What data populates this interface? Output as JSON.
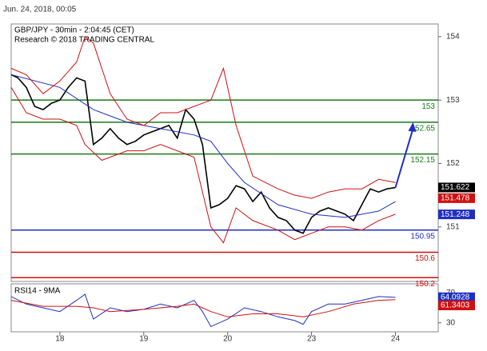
{
  "timestamp": "Jun. 24, 2018, 00:05",
  "chart_data": [
    {
      "type": "line",
      "title": "GBP/JPY - 30min - 2:04:45 (CET)",
      "subtitle": "Research © 2018 TRADING CENTRAL",
      "xlim": [
        0.42,
        5.51
      ],
      "ylim": [
        150.14,
        154.2
      ],
      "yticks": [
        151,
        152,
        153,
        154
      ],
      "series": [
        {
          "color": "#000000",
          "x": [
            0.42,
            0.5,
            0.6,
            0.7,
            0.8,
            0.9,
            1.0,
            1.1,
            1.2,
            1.3,
            1.4,
            1.5,
            1.6,
            1.7,
            1.8,
            1.9,
            2.0,
            2.1,
            2.2,
            2.3,
            2.4,
            2.5,
            2.6,
            2.7,
            2.8,
            2.9,
            3.0,
            3.1,
            3.2,
            3.3,
            3.4,
            3.5,
            3.6,
            3.7,
            3.8,
            3.9,
            4.0,
            4.1,
            4.2,
            4.3,
            4.4,
            4.5,
            4.6,
            4.7,
            4.8,
            4.9,
            5.0
          ],
          "values": [
            153.4,
            153.35,
            153.2,
            152.9,
            152.85,
            152.95,
            153.0,
            153.2,
            153.35,
            153.3,
            152.3,
            152.4,
            152.55,
            152.4,
            152.3,
            152.35,
            152.45,
            152.5,
            152.55,
            152.6,
            152.4,
            152.85,
            152.7,
            152.3,
            151.3,
            151.35,
            151.45,
            151.65,
            151.6,
            151.4,
            151.55,
            151.3,
            151.15,
            151.1,
            150.95,
            150.9,
            151.15,
            151.25,
            151.3,
            151.25,
            151.2,
            151.1,
            151.35,
            151.6,
            151.55,
            151.6,
            151.62
          ]
        },
        {
          "color": "#1f2fbf",
          "x": [
            0.42,
            1.0,
            1.4,
            1.8,
            2.2,
            2.6,
            2.8,
            3.0,
            3.2,
            3.6,
            4.0,
            4.4,
            4.8,
            5.0
          ],
          "values": [
            153.4,
            153.2,
            152.85,
            152.65,
            152.55,
            152.45,
            152.35,
            152.0,
            151.7,
            151.35,
            151.2,
            151.15,
            151.25,
            151.4
          ]
        },
        {
          "color": "#d01010",
          "x": [
            0.42,
            0.6,
            0.8,
            1.0,
            1.2,
            1.3,
            1.4,
            1.6,
            1.8,
            2.0,
            2.2,
            2.4,
            2.6,
            2.8,
            2.95,
            3.1,
            3.3,
            3.6,
            3.8,
            4.0,
            4.2,
            4.4,
            4.6,
            4.8,
            5.0
          ],
          "values": [
            153.5,
            153.4,
            153.1,
            153.3,
            153.6,
            154.0,
            153.9,
            153.1,
            152.7,
            152.6,
            152.8,
            152.8,
            152.9,
            153.0,
            153.5,
            152.6,
            151.8,
            151.6,
            151.5,
            151.45,
            151.55,
            151.6,
            151.6,
            151.75,
            151.7
          ]
        },
        {
          "color": "#d01010",
          "x": [
            0.42,
            0.6,
            0.8,
            1.0,
            1.2,
            1.3,
            1.5,
            1.8,
            2.0,
            2.2,
            2.4,
            2.6,
            2.8,
            2.95,
            3.1,
            3.3,
            3.6,
            3.8,
            4.0,
            4.2,
            4.4,
            4.6,
            4.8,
            5.0
          ],
          "values": [
            153.2,
            152.8,
            152.7,
            152.7,
            152.6,
            152.3,
            152.05,
            152.2,
            152.2,
            152.3,
            152.2,
            152.1,
            151.0,
            150.75,
            151.3,
            151.1,
            150.95,
            150.8,
            150.9,
            151.0,
            151.0,
            150.95,
            151.1,
            151.2
          ]
        }
      ],
      "levels": [
        {
          "value": 153,
          "color": "#1a7a1a"
        },
        {
          "value": 152.65,
          "color": "#1a7a1a"
        },
        {
          "value": 152.15,
          "color": "#1a7a1a"
        },
        {
          "value": 150.95,
          "color": "#1f2fbf"
        },
        {
          "value": 150.6,
          "color": "#d01010"
        },
        {
          "value": 150.2,
          "color": "#d01010"
        }
      ],
      "price_labels": [
        {
          "value": 151.622,
          "color": "#000000"
        },
        {
          "value": 151.478,
          "color": "#d01010"
        },
        {
          "value": 151.248,
          "color": "#1f2fbf"
        }
      ]
    },
    {
      "type": "line",
      "title": "RSI14 - 9MA",
      "xlim": [
        0.42,
        5.51
      ],
      "ylim": [
        18,
        82
      ],
      "yticks": [
        30,
        70
      ],
      "xticks": [
        {
          "value": 1,
          "label": "18"
        },
        {
          "value": 2,
          "label": "19"
        },
        {
          "value": 3,
          "label": "20"
        },
        {
          "value": 4,
          "label": "23"
        },
        {
          "value": 5,
          "label": "24"
        }
      ],
      "series": [
        {
          "color": "#1f2fbf",
          "x": [
            0.42,
            0.6,
            0.8,
            1.0,
            1.2,
            1.3,
            1.4,
            1.6,
            1.8,
            2.0,
            2.2,
            2.4,
            2.6,
            2.7,
            2.8,
            3.0,
            3.2,
            3.4,
            3.6,
            3.8,
            3.9,
            4.0,
            4.2,
            4.4,
            4.6,
            4.8,
            5.0
          ],
          "values": [
            65,
            55,
            50,
            45,
            60,
            68,
            35,
            50,
            45,
            48,
            55,
            50,
            60,
            45,
            25,
            35,
            50,
            45,
            38,
            33,
            28,
            45,
            55,
            55,
            60,
            65,
            64
          ]
        },
        {
          "color": "#d01010",
          "x": [
            0.42,
            0.8,
            1.2,
            1.4,
            1.6,
            2.0,
            2.4,
            2.6,
            2.8,
            3.0,
            3.3,
            3.6,
            3.9,
            4.2,
            4.5,
            4.8,
            5.0
          ],
          "values": [
            60,
            52,
            52,
            50,
            45,
            48,
            52,
            55,
            45,
            38,
            42,
            42,
            38,
            45,
            55,
            60,
            61
          ]
        }
      ],
      "price_labels": [
        {
          "value": 64.0928,
          "color": "#1f2fbf"
        },
        {
          "value": 61.3403,
          "color": "#d01010"
        }
      ]
    }
  ]
}
